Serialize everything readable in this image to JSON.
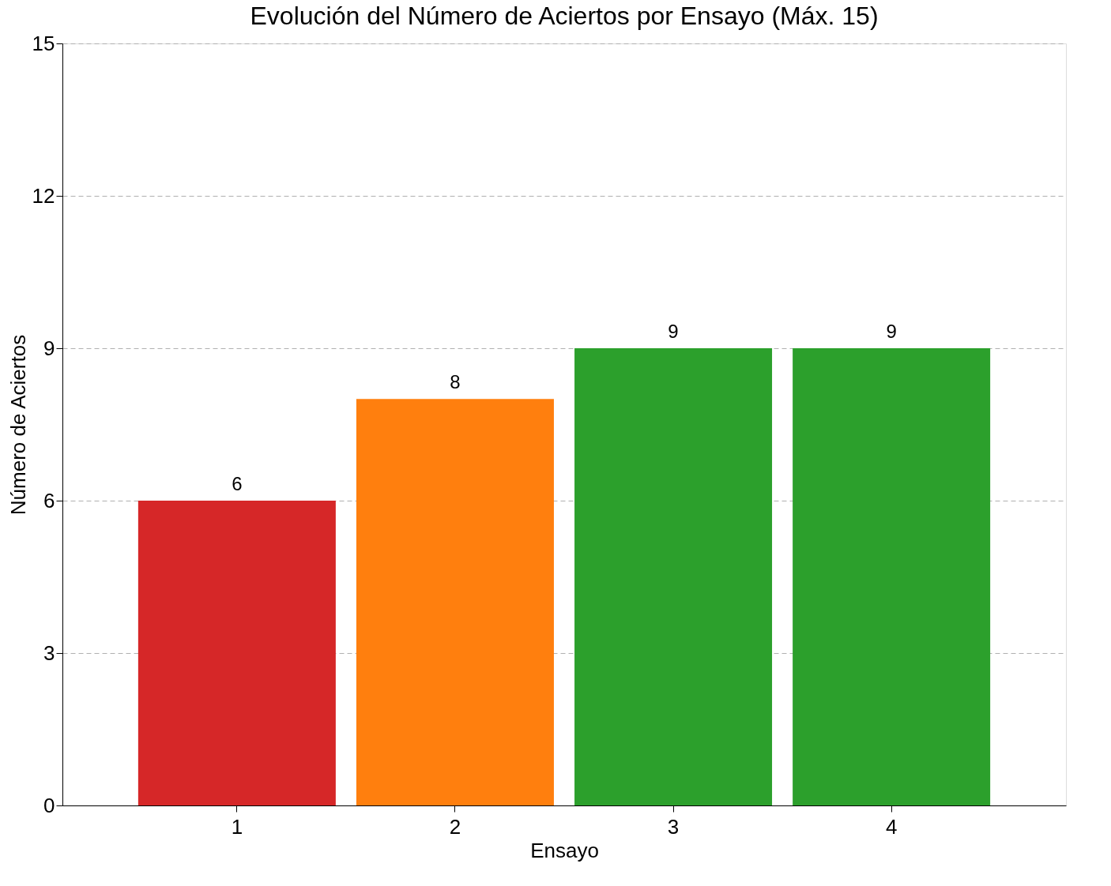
{
  "chart_data": {
    "type": "bar",
    "title": "Evolución del Número de Aciertos por Ensayo (Máx. 15)",
    "xlabel": "Ensayo",
    "ylabel": "Número de Aciertos",
    "categories": [
      "1",
      "2",
      "3",
      "4"
    ],
    "values": [
      6,
      8,
      9,
      9
    ],
    "colors": [
      "#d62728",
      "#ff7f0e",
      "#2ca02c",
      "#2ca02c"
    ],
    "ylim": [
      0,
      15
    ],
    "yticks": [
      0,
      3,
      6,
      9,
      12,
      15
    ],
    "grid": "y",
    "data_labels": true
  }
}
